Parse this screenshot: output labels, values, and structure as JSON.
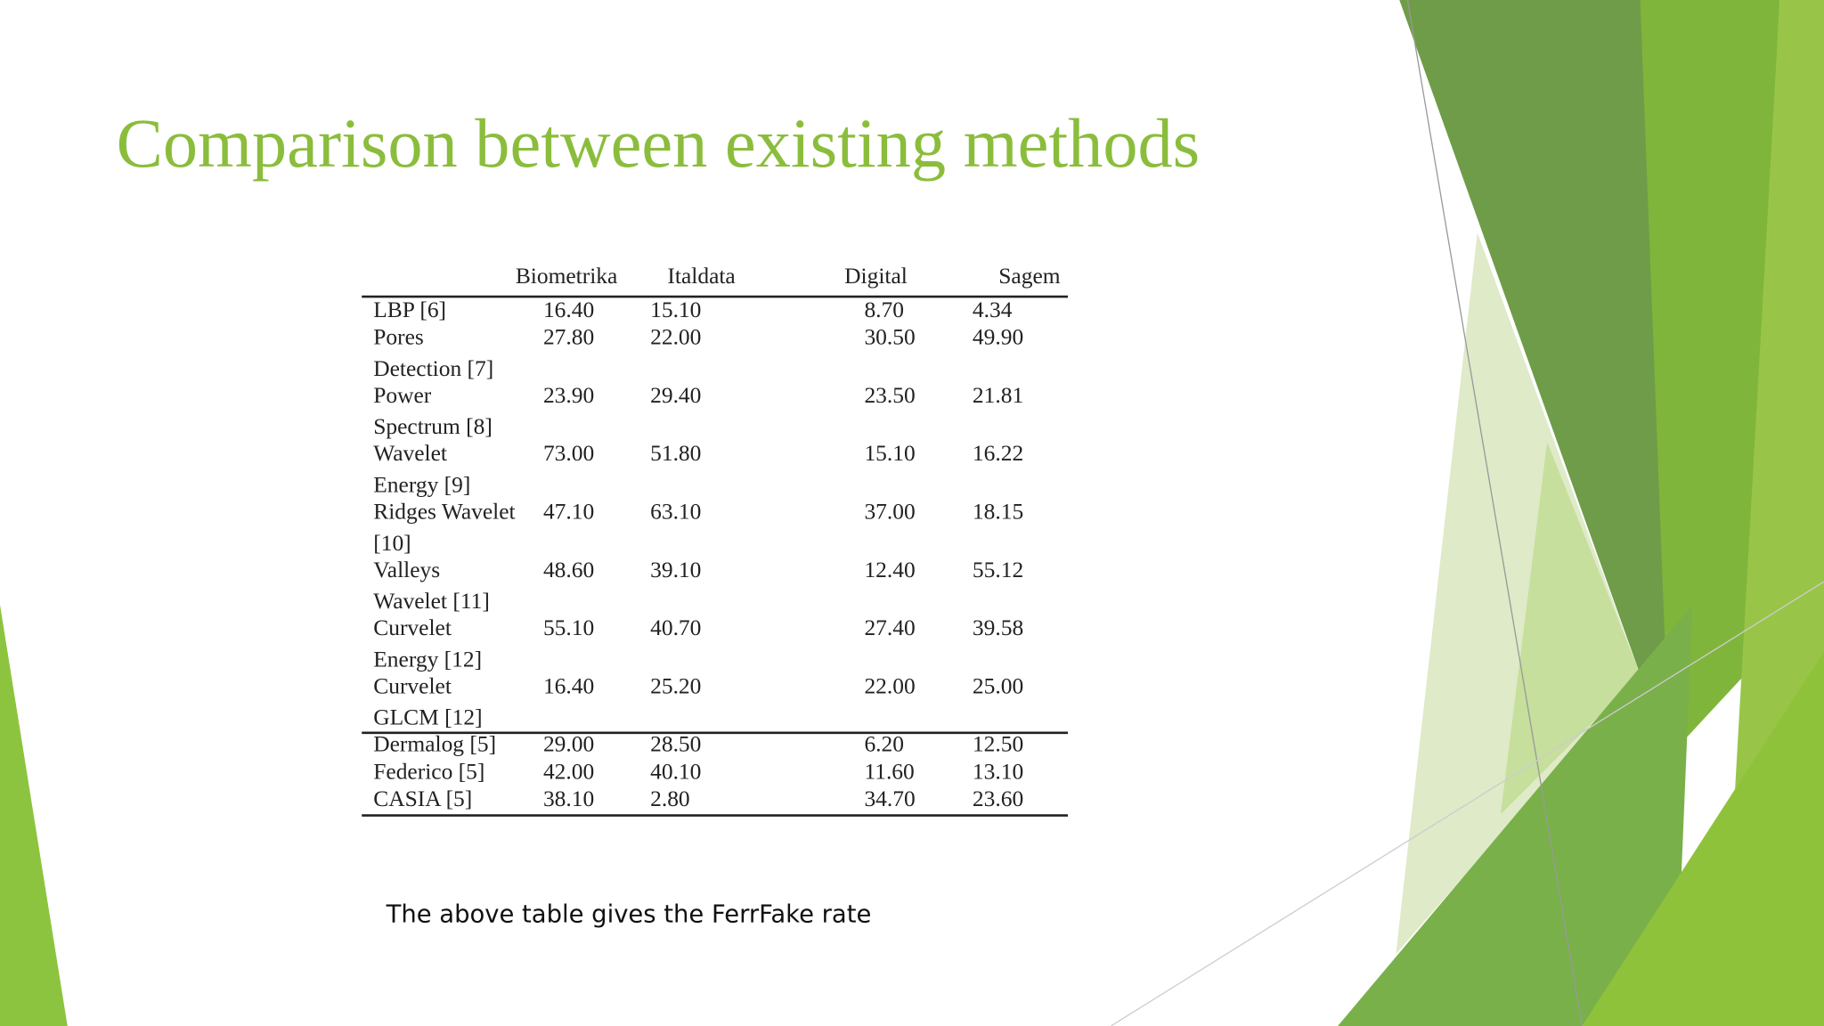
{
  "title": "Comparison between existing methods",
  "table": {
    "header": [
      "Biometrika",
      "Italdata",
      "Digital",
      "Sagem"
    ],
    "rows": [
      {
        "method": [
          "LBP [6]"
        ],
        "values": [
          "16.40",
          "15.10",
          "8.70",
          "4.34"
        ]
      },
      {
        "method": [
          "Pores",
          "Detection [7]"
        ],
        "values": [
          "27.80",
          "22.00",
          "30.50",
          "49.90"
        ]
      },
      {
        "method": [
          "Power",
          "Spectrum [8]"
        ],
        "values": [
          "23.90",
          "29.40",
          "23.50",
          "21.81"
        ]
      },
      {
        "method": [
          "Wavelet",
          "Energy [9]"
        ],
        "values": [
          "73.00",
          "51.80",
          "15.10",
          "16.22"
        ]
      },
      {
        "method": [
          "Ridges Wavelet",
          "[10]"
        ],
        "values": [
          "47.10",
          "63.10",
          "37.00",
          "18.15"
        ]
      },
      {
        "method": [
          "Valleys",
          "Wavelet [11]"
        ],
        "values": [
          "48.60",
          "39.10",
          "12.40",
          "55.12"
        ]
      },
      {
        "method": [
          "Curvelet",
          "Energy [12]"
        ],
        "values": [
          "55.10",
          "40.70",
          "27.40",
          "39.58"
        ]
      },
      {
        "method": [
          "Curvelet",
          "GLCM [12]"
        ],
        "values": [
          "16.40",
          "25.20",
          "22.00",
          "25.00"
        ]
      },
      {
        "method": [
          "Dermalog [5]"
        ],
        "values": [
          "29.00",
          "28.50",
          "6.20",
          "12.50"
        ]
      },
      {
        "method": [
          "Federico [5]"
        ],
        "values": [
          "42.00",
          "40.10",
          "11.60",
          "13.10"
        ]
      },
      {
        "method": [
          "CASIA [5]"
        ],
        "values": [
          "38.10",
          "2.80",
          "34.70",
          "23.60"
        ]
      }
    ]
  },
  "caption": "The above table gives the FerrFake rate"
}
